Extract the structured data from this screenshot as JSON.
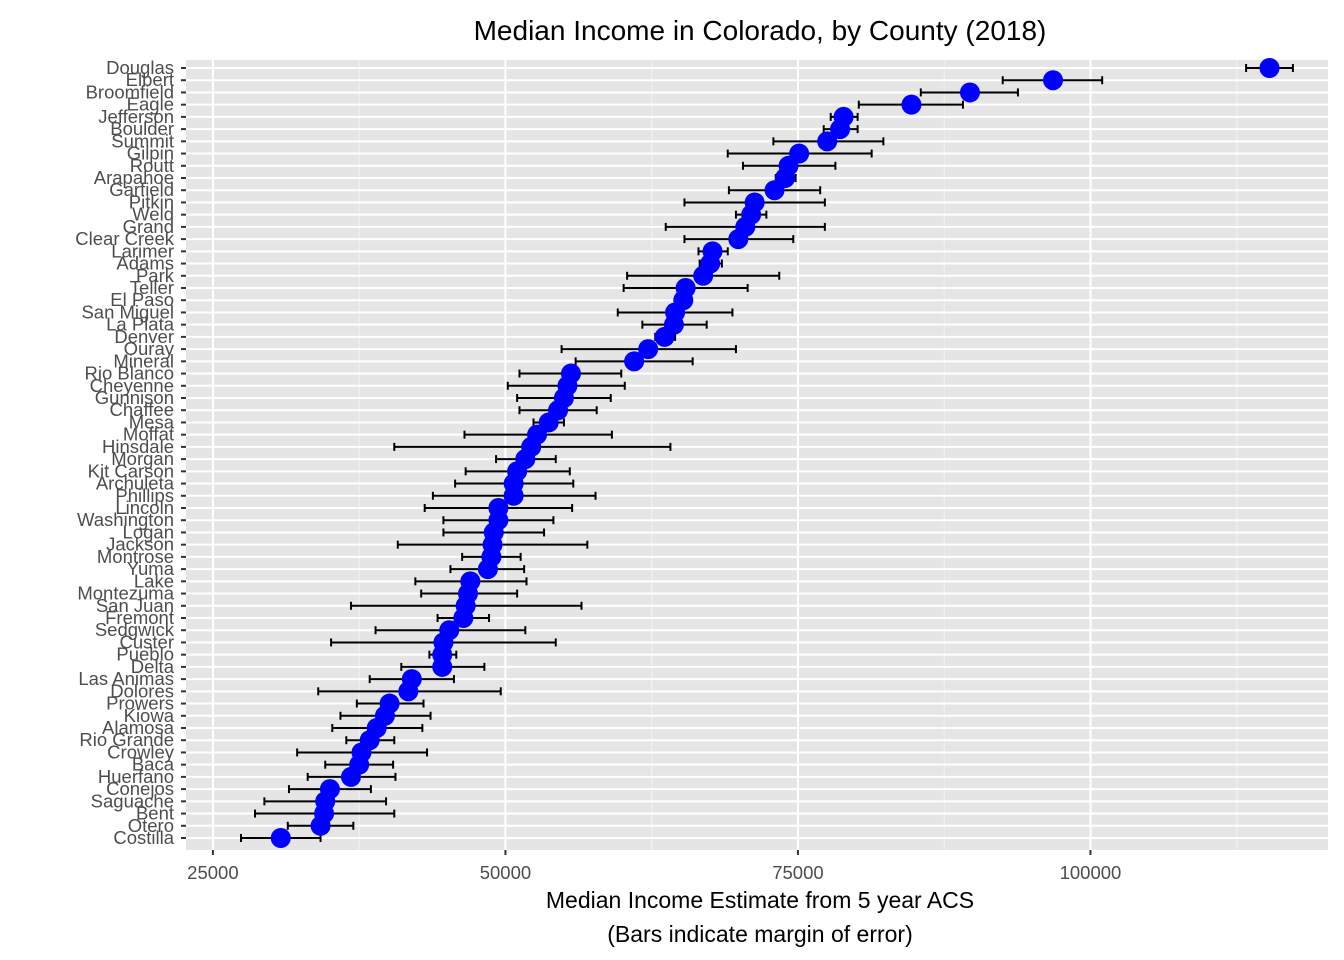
{
  "chart_data": {
    "type": "scatter",
    "title": "Median Income in Colorado, by County (2018)",
    "xlabel_line1": "Median Income Estimate from 5 year ACS",
    "xlabel_line2": "(Bars indicate margin of error)",
    "ylabel": "",
    "xlim": [
      22700,
      120300
    ],
    "x_ticks": [
      25000,
      50000,
      75000,
      100000
    ],
    "x_tick_labels": [
      "25000",
      "50000",
      "75000",
      "100000"
    ],
    "grid": true,
    "panel_background": "#e5e5e5",
    "point_color": "#0000ff",
    "errorbar_color": "#000000",
    "counties": [
      {
        "name": "Douglas",
        "estimate": 115300,
        "lower": 113300,
        "upper": 117300
      },
      {
        "name": "Elbert",
        "estimate": 96800,
        "lower": 92500,
        "upper": 101000
      },
      {
        "name": "Broomfield",
        "estimate": 89700,
        "lower": 85500,
        "upper": 93800
      },
      {
        "name": "Eagle",
        "estimate": 84700,
        "lower": 80200,
        "upper": 89100
      },
      {
        "name": "Jefferson",
        "estimate": 78900,
        "lower": 77800,
        "upper": 80100
      },
      {
        "name": "Boulder",
        "estimate": 78600,
        "lower": 77200,
        "upper": 80100
      },
      {
        "name": "Summit",
        "estimate": 77500,
        "lower": 72900,
        "upper": 82300
      },
      {
        "name": "Gilpin",
        "estimate": 75100,
        "lower": 69000,
        "upper": 81300
      },
      {
        "name": "Routt",
        "estimate": 74200,
        "lower": 70300,
        "upper": 78200
      },
      {
        "name": "Arapahoe",
        "estimate": 73900,
        "lower": 73100,
        "upper": 74800
      },
      {
        "name": "Garfield",
        "estimate": 73000,
        "lower": 69100,
        "upper": 76900
      },
      {
        "name": "Pitkin",
        "estimate": 71300,
        "lower": 65300,
        "upper": 77300
      },
      {
        "name": "Weld",
        "estimate": 71000,
        "lower": 69700,
        "upper": 72300
      },
      {
        "name": "Grand",
        "estimate": 70500,
        "lower": 63700,
        "upper": 77300
      },
      {
        "name": "Clear Creek",
        "estimate": 69900,
        "lower": 65300,
        "upper": 74600
      },
      {
        "name": "Larimer",
        "estimate": 67700,
        "lower": 66500,
        "upper": 69000
      },
      {
        "name": "Adams",
        "estimate": 67500,
        "lower": 66600,
        "upper": 68500
      },
      {
        "name": "Park",
        "estimate": 66900,
        "lower": 60400,
        "upper": 73400
      },
      {
        "name": "Teller",
        "estimate": 65400,
        "lower": 60100,
        "upper": 70700
      },
      {
        "name": "El Paso",
        "estimate": 65200,
        "lower": 64500,
        "upper": 65900
      },
      {
        "name": "San Miguel",
        "estimate": 64500,
        "lower": 59600,
        "upper": 69400
      },
      {
        "name": "La Plata",
        "estimate": 64400,
        "lower": 61700,
        "upper": 67200
      },
      {
        "name": "Denver",
        "estimate": 63600,
        "lower": 62800,
        "upper": 64500
      },
      {
        "name": "Ouray",
        "estimate": 62200,
        "lower": 54800,
        "upper": 69700
      },
      {
        "name": "Mineral",
        "estimate": 61000,
        "lower": 56000,
        "upper": 66000
      },
      {
        "name": "Rio Blanco",
        "estimate": 55600,
        "lower": 51200,
        "upper": 59900
      },
      {
        "name": "Cheyenne",
        "estimate": 55300,
        "lower": 50200,
        "upper": 60200
      },
      {
        "name": "Gunnison",
        "estimate": 55000,
        "lower": 51000,
        "upper": 59000
      },
      {
        "name": "Chaffee",
        "estimate": 54500,
        "lower": 51200,
        "upper": 57800
      },
      {
        "name": "Mesa",
        "estimate": 53700,
        "lower": 52400,
        "upper": 55000
      },
      {
        "name": "Moffat",
        "estimate": 52700,
        "lower": 46500,
        "upper": 59100
      },
      {
        "name": "Hinsdale",
        "estimate": 52200,
        "lower": 40500,
        "upper": 64100
      },
      {
        "name": "Morgan",
        "estimate": 51700,
        "lower": 49200,
        "upper": 54300
      },
      {
        "name": "Kit Carson",
        "estimate": 51000,
        "lower": 46600,
        "upper": 55500
      },
      {
        "name": "Archuleta",
        "estimate": 50700,
        "lower": 45700,
        "upper": 55800
      },
      {
        "name": "Phillips",
        "estimate": 50700,
        "lower": 43800,
        "upper": 57700
      },
      {
        "name": "Lincoln",
        "estimate": 49400,
        "lower": 43100,
        "upper": 55700
      },
      {
        "name": "Washington",
        "estimate": 49400,
        "lower": 44700,
        "upper": 54100
      },
      {
        "name": "Logan",
        "estimate": 49000,
        "lower": 44700,
        "upper": 53300
      },
      {
        "name": "Jackson",
        "estimate": 48900,
        "lower": 40800,
        "upper": 57000
      },
      {
        "name": "Montrose",
        "estimate": 48800,
        "lower": 46300,
        "upper": 51300
      },
      {
        "name": "Yuma",
        "estimate": 48500,
        "lower": 45300,
        "upper": 51600
      },
      {
        "name": "Lake",
        "estimate": 47000,
        "lower": 42300,
        "upper": 51800
      },
      {
        "name": "Montezuma",
        "estimate": 46800,
        "lower": 42800,
        "upper": 51000
      },
      {
        "name": "San Juan",
        "estimate": 46600,
        "lower": 36800,
        "upper": 56500
      },
      {
        "name": "Fremont",
        "estimate": 46400,
        "lower": 44200,
        "upper": 48600
      },
      {
        "name": "Sedgwick",
        "estimate": 45200,
        "lower": 38900,
        "upper": 51700
      },
      {
        "name": "Custer",
        "estimate": 44700,
        "lower": 35100,
        "upper": 54300
      },
      {
        "name": "Pueblo",
        "estimate": 44600,
        "lower": 43500,
        "upper": 45800
      },
      {
        "name": "Delta",
        "estimate": 44600,
        "lower": 41100,
        "upper": 48200
      },
      {
        "name": "Las Animas",
        "estimate": 42000,
        "lower": 38400,
        "upper": 45600
      },
      {
        "name": "Dolores",
        "estimate": 41700,
        "lower": 34000,
        "upper": 49600
      },
      {
        "name": "Prowers",
        "estimate": 40100,
        "lower": 37300,
        "upper": 43000
      },
      {
        "name": "Kiowa",
        "estimate": 39700,
        "lower": 35900,
        "upper": 43600
      },
      {
        "name": "Alamosa",
        "estimate": 39000,
        "lower": 35200,
        "upper": 42900
      },
      {
        "name": "Rio Grande",
        "estimate": 38400,
        "lower": 36400,
        "upper": 40500
      },
      {
        "name": "Crowley",
        "estimate": 37700,
        "lower": 32200,
        "upper": 43300
      },
      {
        "name": "Baca",
        "estimate": 37500,
        "lower": 34600,
        "upper": 40400
      },
      {
        "name": "Huerfano",
        "estimate": 36800,
        "lower": 33100,
        "upper": 40600
      },
      {
        "name": "Conejos",
        "estimate": 35000,
        "lower": 31500,
        "upper": 38500
      },
      {
        "name": "Saguache",
        "estimate": 34600,
        "lower": 29400,
        "upper": 39800
      },
      {
        "name": "Bent",
        "estimate": 34500,
        "lower": 28600,
        "upper": 40500
      },
      {
        "name": "Otero",
        "estimate": 34200,
        "lower": 31400,
        "upper": 37000
      },
      {
        "name": "Costilla",
        "estimate": 30800,
        "lower": 27400,
        "upper": 34200
      }
    ]
  }
}
